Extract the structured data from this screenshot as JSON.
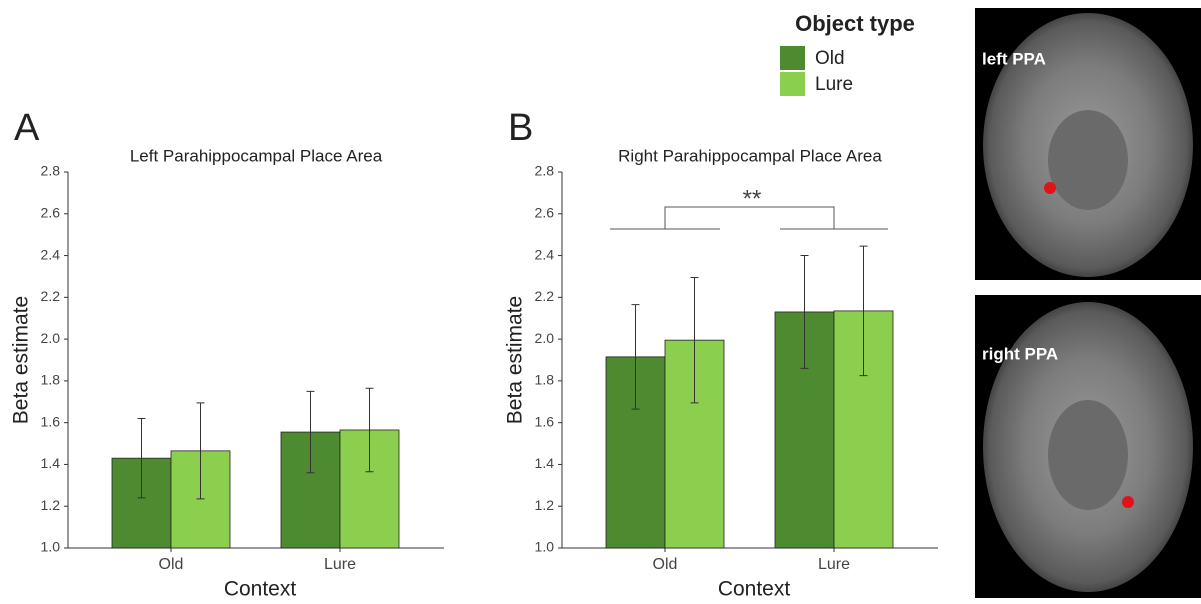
{
  "legend": {
    "title": "Object type"
  },
  "images": [
    {
      "label": "left PPA"
    },
    {
      "label": "right PPA"
    }
  ],
  "chart_data": [
    {
      "type": "bar",
      "panel": "A",
      "title": "Left Parahippocampal Place Area",
      "x_label": "Context",
      "y_label": "Beta estimate",
      "categories": [
        "Old",
        "Lure"
      ],
      "series": [
        {
          "name": "Old",
          "color": "#4e8a2f",
          "values": [
            1.43,
            1.555
          ],
          "errors": [
            0.19,
            0.195
          ]
        },
        {
          "name": "Lure",
          "color": "#8ccf4f",
          "values": [
            1.465,
            1.565
          ],
          "errors": [
            0.23,
            0.2
          ]
        }
      ],
      "ylim": [
        1.0,
        2.8
      ],
      "yticks": [
        {
          "value": 1.0,
          "label": "1.0"
        },
        {
          "value": 1.2,
          "label": "1.2"
        },
        {
          "value": 1.4,
          "label": "1.4"
        },
        {
          "value": 1.6,
          "label": "1.6"
        },
        {
          "value": 1.8,
          "label": "1.8"
        },
        {
          "value": 2.0,
          "label": "2.0"
        },
        {
          "value": 2.2,
          "label": "2.2"
        },
        {
          "value": 2.4,
          "label": "2.4"
        },
        {
          "value": 2.6,
          "label": "2.6"
        },
        {
          "value": 2.8,
          "label": "2.8"
        }
      ],
      "grid": false
    },
    {
      "type": "bar",
      "panel": "B",
      "title": "Right Parahippocampal Place Area",
      "x_label": "Context",
      "y_label": "Beta estimate",
      "categories": [
        "Old",
        "Lure"
      ],
      "series": [
        {
          "color": "#4e8a2f",
          "values": [
            1.915,
            2.13
          ],
          "errors": [
            0.25,
            0.27
          ]
        },
        {
          "color": "#8ccf4f",
          "values": [
            1.995,
            2.135
          ],
          "errors": [
            0.3,
            0.31
          ]
        }
      ],
      "ylim": [
        1.0,
        2.8
      ],
      "yticks": [
        {
          "value": 1.0,
          "label": "1.0"
        },
        {
          "value": 1.2,
          "label": "1.2"
        },
        {
          "value": 1.4,
          "label": "1.4"
        },
        {
          "value": 1.6,
          "label": "1.6"
        },
        {
          "value": 1.8,
          "label": "1.8"
        },
        {
          "value": 2.0,
          "label": "2.0"
        },
        {
          "value": 2.2,
          "label": "2.2"
        },
        {
          "value": 2.4,
          "label": "2.4"
        },
        {
          "value": 2.6,
          "label": "2.6"
        },
        {
          "value": 2.8,
          "label": "2.8"
        }
      ],
      "grid": false,
      "annotations": [
        {
          "text": "**"
        }
      ]
    }
  ]
}
